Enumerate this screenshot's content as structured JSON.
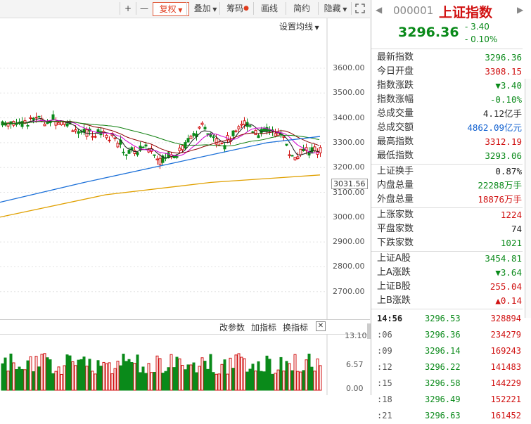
{
  "toolbar": {
    "plus": "+",
    "minus": "—",
    "fuquan": "复权",
    "diejia": "叠加",
    "chouma": "筹码",
    "huaxian": "画线",
    "jianyue": "简约",
    "yincang": "隐藏"
  },
  "chart": {
    "ma_settings": "设置均线",
    "y_ticks": [
      "3600.00",
      "3500.00",
      "3400.00",
      "3300.00",
      "3200.00",
      "3100.00",
      "3000.00",
      "2900.00",
      "2800.00",
      "2700.00"
    ],
    "low_marker": "3031.56",
    "vol_ticks": [
      "13.10",
      "6.57",
      "0.00"
    ]
  },
  "vol_toolbar": {
    "change_params": "改参数",
    "add_indicator": "加指标",
    "swap_indicator": "换指标",
    "close": "✕"
  },
  "quote": {
    "code": "000001",
    "name": "上证指数",
    "price": "3296.36",
    "change": "- 3.40",
    "change_pct": "- 0.10%"
  },
  "stats": [
    {
      "k": "最新指数",
      "v": "3296.36",
      "c": "green"
    },
    {
      "k": "今日开盘",
      "v": "3308.15",
      "c": "red"
    },
    {
      "k": "指数涨跌",
      "v": "▼3.40",
      "c": "green"
    },
    {
      "k": "指数涨幅",
      "v": "-0.10%",
      "c": "green"
    },
    {
      "k": "总成交量",
      "v": "4.12亿手",
      "c": "black"
    },
    {
      "k": "总成交额",
      "v": "4862.09亿元",
      "c": "blue"
    },
    {
      "k": "最高指数",
      "v": "3312.19",
      "c": "red"
    },
    {
      "k": "最低指数",
      "v": "3293.06",
      "c": "green"
    }
  ],
  "stats2": [
    {
      "k": "上证换手",
      "v": "0.87%",
      "c": "black"
    },
    {
      "k": "内盘总量",
      "v": "22288万手",
      "c": "green"
    },
    {
      "k": "外盘总量",
      "v": "18876万手",
      "c": "red"
    }
  ],
  "stats3": [
    {
      "k": "上涨家数",
      "v": "1224",
      "c": "red"
    },
    {
      "k": "平盘家数",
      "v": "74",
      "c": "black"
    },
    {
      "k": "下跌家数",
      "v": "1021",
      "c": "green"
    }
  ],
  "stats4": [
    {
      "k": "上证A股",
      "v": "3454.81",
      "c": "green"
    },
    {
      "k": "上A涨跌",
      "v": "▼3.64",
      "c": "green"
    },
    {
      "k": "上证B股",
      "v": "255.04",
      "c": "red"
    },
    {
      "k": "上B涨跌",
      "v": "▲0.14",
      "c": "red"
    }
  ],
  "ticks": [
    {
      "t": "14:56",
      "p": "3296.53",
      "q": "328894"
    },
    {
      "t": ":06",
      "p": "3296.36",
      "q": "234279"
    },
    {
      "t": ":09",
      "p": "3296.14",
      "q": "169243"
    },
    {
      "t": ":12",
      "p": "3296.22",
      "q": "141483"
    },
    {
      "t": ":15",
      "p": "3296.58",
      "q": "144229"
    },
    {
      "t": ":18",
      "p": "3296.49",
      "q": "152221"
    },
    {
      "t": ":21",
      "p": "3296.63",
      "q": "161452"
    }
  ]
}
